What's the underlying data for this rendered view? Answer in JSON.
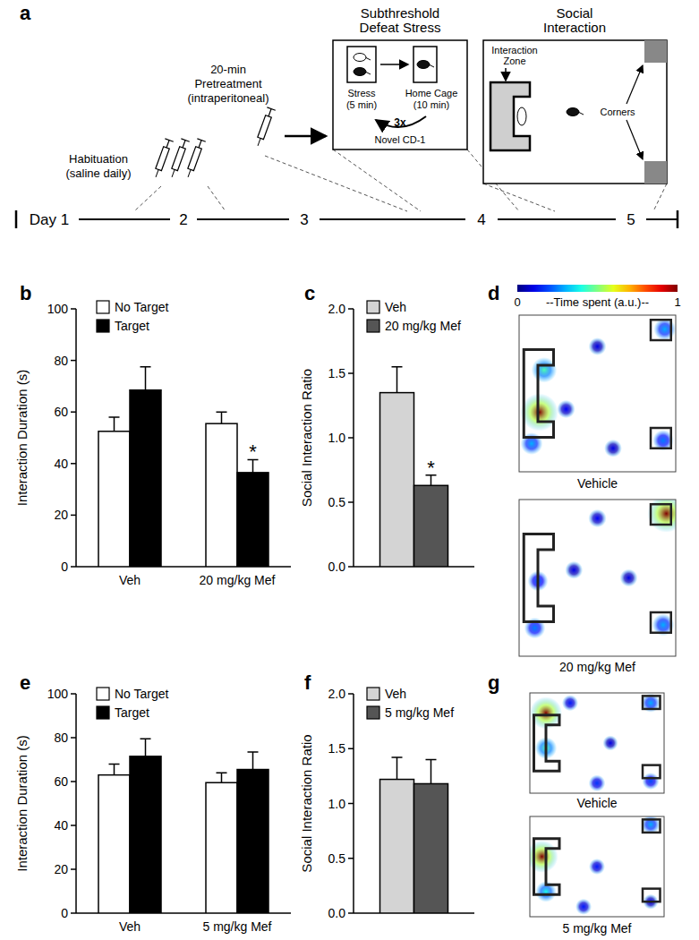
{
  "schematic": {
    "panel_label": "a",
    "timeline": [
      "Day 1",
      "2",
      "3",
      "4",
      "5"
    ],
    "habituation": [
      "Habituation",
      "(saline daily)"
    ],
    "pretreatment": [
      "20-min",
      "Pretreatment",
      "(intraperitoneal)"
    ],
    "defeat": {
      "title": [
        "Subthreshold",
        "Defeat Stress"
      ],
      "stress": [
        "Stress",
        "(5 min)"
      ],
      "home_cage": [
        "Home Cage",
        "(10 min)"
      ],
      "repeats": "3x",
      "intruder": "Novel CD-1"
    },
    "social": {
      "title": [
        "Social",
        "Interaction"
      ],
      "zone": [
        "Interaction",
        "Zone"
      ],
      "corners": "Corners"
    }
  },
  "chart_data": [
    {
      "panel_label": "b",
      "type": "bar",
      "categories": [
        "Veh",
        "20 mg/kg Mef"
      ],
      "y_label": "Interaction Duration (s)",
      "ylim": [
        0,
        100
      ],
      "yticks": [
        0,
        20,
        40,
        60,
        80,
        100
      ],
      "legend": "upper left",
      "series": [
        {
          "name": "No Target",
          "color": "#ffffff",
          "values": [
            52.5,
            55.5
          ],
          "errors": [
            5.5,
            4.5
          ]
        },
        {
          "name": "Target",
          "color": "#000000",
          "values": [
            68.5,
            36.5
          ],
          "errors": [
            9,
            5
          ],
          "significance": [
            null,
            "*"
          ]
        }
      ]
    },
    {
      "panel_label": "c",
      "type": "bar",
      "categories": [
        null
      ],
      "y_label": "Social Interaction Ratio",
      "ylim": [
        0,
        2
      ],
      "yticks": [
        {
          "value": 0,
          "label": "0.0"
        },
        {
          "value": 0.5,
          "label": "0.5"
        },
        {
          "value": 1,
          "label": "1.0"
        },
        {
          "value": 1.5,
          "label": "1.5"
        },
        {
          "value": 2,
          "label": "2.0"
        }
      ],
      "legend": "upper left",
      "series": [
        {
          "name": "Veh",
          "color": "#d4d4d4",
          "values": [
            1.35
          ],
          "errors": [
            0.2
          ]
        },
        {
          "name": "20 mg/kg Mef",
          "color": "#555555",
          "values": [
            0.63
          ],
          "errors": [
            0.08
          ],
          "significance": [
            "*"
          ]
        }
      ]
    },
    {
      "panel_label": "e",
      "type": "bar",
      "categories": [
        "Veh",
        "5 mg/kg Mef"
      ],
      "y_label": "Interaction Duration (s)",
      "ylim": [
        0,
        100
      ],
      "yticks": [
        0,
        20,
        40,
        60,
        80,
        100
      ],
      "legend": "upper left",
      "series": [
        {
          "name": "No Target",
          "color": "#ffffff",
          "values": [
            63,
            59.5
          ],
          "errors": [
            5,
            4.5
          ]
        },
        {
          "name": "Target",
          "color": "#000000",
          "values": [
            71.5,
            65.5
          ],
          "errors": [
            8,
            8
          ]
        }
      ]
    },
    {
      "panel_label": "f",
      "type": "bar",
      "categories": [
        null
      ],
      "y_label": "Social Interaction Ratio",
      "ylim": [
        0,
        2
      ],
      "yticks": [
        {
          "value": 0,
          "label": "0.0"
        },
        {
          "value": 0.5,
          "label": "0.5"
        },
        {
          "value": 1,
          "label": "1.0"
        },
        {
          "value": 1.5,
          "label": "1.5"
        },
        {
          "value": 2,
          "label": "2.0"
        }
      ],
      "legend": "upper left",
      "series": [
        {
          "name": "Veh",
          "color": "#d4d4d4",
          "values": [
            1.22
          ],
          "errors": [
            0.2
          ]
        },
        {
          "name": "5 mg/kg Mef",
          "color": "#555555",
          "values": [
            1.18
          ],
          "errors": [
            0.22
          ]
        }
      ]
    }
  ],
  "heatmaps": {
    "colorbar": {
      "range": [
        0,
        1
      ],
      "ticks": [
        0,
        1
      ],
      "label": "--Time spent (a.u.)--"
    },
    "panels": [
      {
        "panel_label": "d",
        "arenas": [
          {
            "title": "Vehicle",
            "hotspots": [
              {
                "x": 0.13,
                "y": 0.62,
                "value": 1
              },
              {
                "x": 0.16,
                "y": 0.35,
                "value": 0.45
              },
              {
                "x": 0.08,
                "y": 0.82,
                "value": 0.3
              },
              {
                "x": 0.93,
                "y": 0.09,
                "value": 0.3
              },
              {
                "x": 0.92,
                "y": 0.8,
                "value": 0.25
              },
              {
                "x": 0.3,
                "y": 0.6,
                "value": 0.12
              },
              {
                "x": 0.5,
                "y": 0.2,
                "value": 0.1
              },
              {
                "x": 0.6,
                "y": 0.85,
                "value": 0.1
              }
            ]
          },
          {
            "title": "20 mg/kg Mef",
            "hotspots": [
              {
                "x": 0.94,
                "y": 0.09,
                "value": 1
              },
              {
                "x": 0.92,
                "y": 0.8,
                "value": 0.3
              },
              {
                "x": 0.12,
                "y": 0.52,
                "value": 0.22
              },
              {
                "x": 0.1,
                "y": 0.82,
                "value": 0.25
              },
              {
                "x": 0.5,
                "y": 0.12,
                "value": 0.12
              },
              {
                "x": 0.35,
                "y": 0.45,
                "value": 0.1
              },
              {
                "x": 0.7,
                "y": 0.5,
                "value": 0.1
              }
            ]
          }
        ]
      },
      {
        "panel_label": "g",
        "arenas": [
          {
            "title": "Vehicle",
            "hotspots": [
              {
                "x": 0.12,
                "y": 0.2,
                "value": 1
              },
              {
                "x": 0.12,
                "y": 0.55,
                "value": 0.45
              },
              {
                "x": 0.9,
                "y": 0.1,
                "value": 0.3
              },
              {
                "x": 0.5,
                "y": 0.9,
                "value": 0.18
              },
              {
                "x": 0.9,
                "y": 0.88,
                "value": 0.2
              },
              {
                "x": 0.3,
                "y": 0.1,
                "value": 0.15
              },
              {
                "x": 0.6,
                "y": 0.5,
                "value": 0.1
              }
            ]
          },
          {
            "title": "5 mg/kg Mef",
            "hotspots": [
              {
                "x": 0.09,
                "y": 0.4,
                "value": 1
              },
              {
                "x": 0.12,
                "y": 0.75,
                "value": 0.4
              },
              {
                "x": 0.9,
                "y": 0.08,
                "value": 0.3
              },
              {
                "x": 0.5,
                "y": 0.5,
                "value": 0.15
              },
              {
                "x": 0.4,
                "y": 0.9,
                "value": 0.15
              },
              {
                "x": 0.9,
                "y": 0.85,
                "value": 0.1
              }
            ]
          }
        ]
      }
    ]
  }
}
